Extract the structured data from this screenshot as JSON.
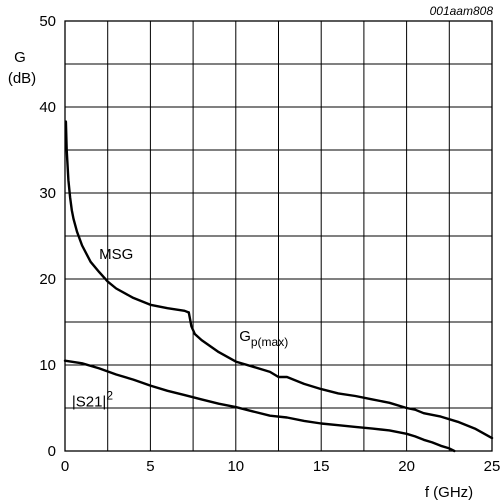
{
  "figure_id": "001aam808",
  "chart_data": {
    "type": "line",
    "title": "",
    "ylabel_line1": "G",
    "ylabel_line2": "(dB)",
    "xlabel": "f (GHz)",
    "xlim": [
      0,
      25
    ],
    "ylim": [
      0,
      50
    ],
    "x_ticks": [
      0,
      5,
      10,
      15,
      20,
      25
    ],
    "y_ticks": [
      0,
      10,
      20,
      30,
      40,
      50
    ],
    "x_grid_step": 2.5,
    "y_grid_step": 5,
    "grid": true,
    "series": [
      {
        "name": "MSG",
        "x": [
          0.05,
          0.1,
          0.2,
          0.3,
          0.4,
          0.5,
          0.7,
          1.0,
          1.5,
          2.0,
          2.5,
          3.0,
          4.0,
          5.0,
          6.0,
          7.0,
          7.25
        ],
        "y": [
          38.3,
          35.0,
          31.5,
          29.5,
          28.0,
          27.0,
          25.5,
          23.9,
          22.0,
          20.8,
          19.7,
          18.9,
          17.8,
          17.0,
          16.6,
          16.3,
          16.1
        ]
      },
      {
        "name": "Gp(max)",
        "x": [
          7.25,
          7.4,
          7.6,
          8.0,
          9.0,
          10.0,
          11.0,
          12.0,
          12.5,
          13.0,
          14.0,
          15.0,
          16.0,
          17.0,
          18.0,
          19.0,
          20.0,
          20.5,
          21.0,
          22.0,
          23.0,
          24.0,
          25.0
        ],
        "y": [
          16.1,
          14.5,
          13.6,
          12.9,
          11.5,
          10.4,
          9.8,
          9.2,
          8.6,
          8.6,
          7.8,
          7.2,
          6.7,
          6.4,
          6.0,
          5.6,
          5.0,
          4.8,
          4.4,
          4.0,
          3.4,
          2.6,
          1.5
        ]
      },
      {
        "name": "|S21|2",
        "x": [
          0,
          1,
          2,
          3,
          4,
          5,
          6,
          7,
          8,
          9,
          10,
          11,
          12,
          13,
          14,
          15,
          16,
          17,
          18,
          19,
          20,
          20.5,
          21,
          21.5,
          22,
          22.5,
          22.8
        ],
        "y": [
          10.5,
          10.2,
          9.6,
          8.9,
          8.3,
          7.6,
          7.0,
          6.5,
          6.0,
          5.5,
          5.1,
          4.6,
          4.1,
          3.9,
          3.5,
          3.2,
          3.0,
          2.8,
          2.6,
          2.4,
          2.0,
          1.7,
          1.3,
          1.0,
          0.6,
          0.3,
          0.0
        ]
      }
    ],
    "annotations": [
      {
        "text_main": "MSG",
        "text_sub": "",
        "text_sup": "",
        "x": 2.0,
        "y": 22.3
      },
      {
        "text_main": "G",
        "text_sub": "p(max)",
        "text_sup": "",
        "x": 10.2,
        "y": 12.8
      },
      {
        "text_main": "|S21|",
        "text_sub": "",
        "text_sup": "2",
        "x": 0.4,
        "y": 5.2
      }
    ]
  }
}
